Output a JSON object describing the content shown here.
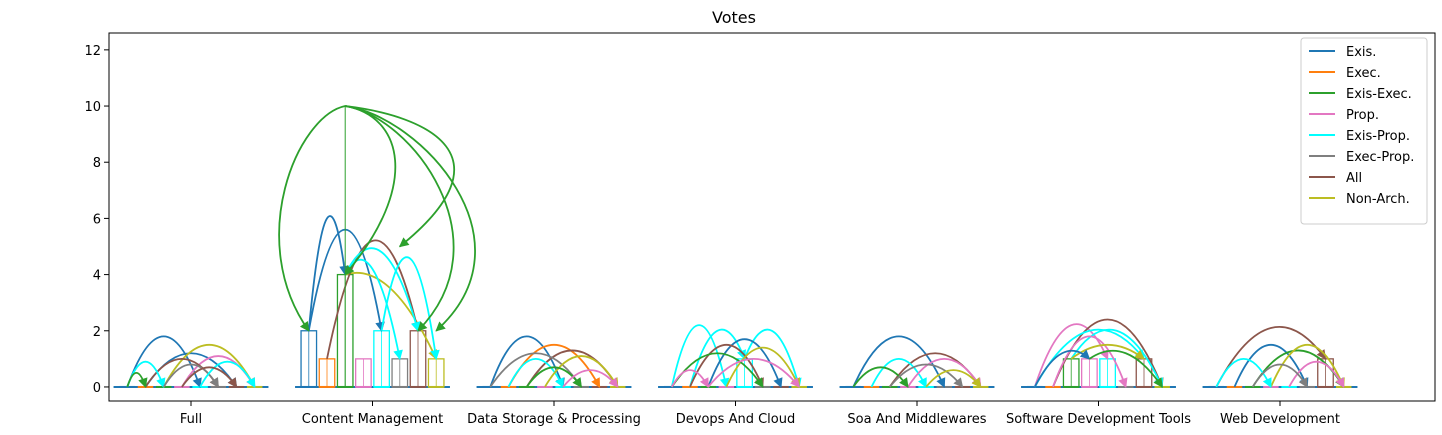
{
  "chart_data": {
    "type": "bar",
    "title": "Votes",
    "xlabel": "",
    "ylabel": "",
    "ylim": [
      -0.5,
      12.6
    ],
    "yticks": [
      0,
      2,
      4,
      6,
      8,
      10,
      12
    ],
    "grid": false,
    "legend_position": "top-right",
    "categories": [
      "Full",
      "Content Management",
      "Data Storage & Processing",
      "Devops And Cloud",
      "Soa And Middlewares",
      "Software Development Tools",
      "Web Development"
    ],
    "series": [
      {
        "name": "Exis.",
        "color": "#1f77b4",
        "values": [
          0,
          2,
          0,
          0,
          0,
          0,
          0
        ]
      },
      {
        "name": "Exec.",
        "color": "#ff7f0e",
        "values": [
          0,
          1,
          0,
          0,
          0,
          0,
          0
        ]
      },
      {
        "name": "Exis-Exec.",
        "color": "#2ca02c",
        "values": [
          0,
          4,
          0,
          0,
          0,
          1,
          0
        ]
      },
      {
        "name": "Prop.",
        "color": "#e377c2",
        "values": [
          0,
          1,
          0,
          0,
          0,
          1,
          0
        ]
      },
      {
        "name": "Exis-Prop.",
        "color": "#00ffff",
        "values": [
          0,
          2,
          0,
          1,
          0,
          1,
          0
        ]
      },
      {
        "name": "Exec-Prop.",
        "color": "#7f7f7f",
        "values": [
          0,
          1,
          0,
          0,
          0,
          0,
          0
        ]
      },
      {
        "name": "All",
        "color": "#8c564b",
        "values": [
          0,
          2,
          0,
          0,
          0,
          1,
          1
        ]
      },
      {
        "name": "Non-Arch.",
        "color": "#bcbd22",
        "values": [
          0,
          1,
          0,
          0,
          0,
          0,
          0
        ]
      }
    ],
    "arcs": [
      {
        "group": 0,
        "from": 0,
        "to": 4,
        "height": 1.8,
        "color": "#1f77b4"
      },
      {
        "group": 0,
        "from": 1,
        "to": 6,
        "height": 1.2,
        "color": "#1f77b4"
      },
      {
        "group": 0,
        "from": 2,
        "to": 7,
        "height": 1.5,
        "color": "#bcbd22"
      },
      {
        "group": 0,
        "from": 3,
        "to": 7,
        "height": 1.1,
        "color": "#e377c2"
      },
      {
        "group": 0,
        "from": 1,
        "to": 5,
        "height": 1.0,
        "color": "#8c564b"
      },
      {
        "group": 0,
        "from": 0,
        "to": 2,
        "height": 0.9,
        "color": "#00ffff"
      },
      {
        "group": 0,
        "from": 2,
        "to": 5,
        "height": 0.8,
        "color": "#7f7f7f"
      },
      {
        "group": 0,
        "from": 4,
        "to": 7,
        "height": 0.9,
        "color": "#00ffff"
      },
      {
        "group": 0,
        "from": 0,
        "to": 1,
        "height": 0.5,
        "color": "#2ca02c"
      },
      {
        "group": 0,
        "from": 3,
        "to": 6,
        "height": 0.7,
        "color": "#8c564b"
      },
      {
        "group": 1,
        "from": 0,
        "to": 2,
        "height": 6.0,
        "color": "#1f77b4"
      },
      {
        "group": 1,
        "from": 0,
        "to": 4,
        "height": 5.6,
        "color": "#1f77b4"
      },
      {
        "group": 1,
        "from": 2,
        "to": 7,
        "height": 3.5,
        "color": "#bcbd22"
      },
      {
        "group": 1,
        "from": 1,
        "to": 6,
        "height": 5.2,
        "color": "#8c564b"
      },
      {
        "group": 1,
        "from": 2,
        "to": 6,
        "height": 4.8,
        "color": "#00ffff"
      },
      {
        "group": 1,
        "from": 4,
        "to": 7,
        "height": 4.6,
        "color": "#00ffff"
      },
      {
        "group": 1,
        "from": 2,
        "to": 5,
        "height": 4.2,
        "color": "#00ffff"
      },
      {
        "group": 2,
        "from": 0,
        "to": 4,
        "height": 1.8,
        "color": "#1f77b4"
      },
      {
        "group": 2,
        "from": 1,
        "to": 6,
        "height": 1.5,
        "color": "#ff7f0e"
      },
      {
        "group": 2,
        "from": 2,
        "to": 7,
        "height": 1.3,
        "color": "#8c564b"
      },
      {
        "group": 2,
        "from": 0,
        "to": 5,
        "height": 1.2,
        "color": "#7f7f7f"
      },
      {
        "group": 2,
        "from": 1,
        "to": 4,
        "height": 1.0,
        "color": "#00ffff"
      },
      {
        "group": 2,
        "from": 3,
        "to": 7,
        "height": 1.1,
        "color": "#bcbd22"
      },
      {
        "group": 2,
        "from": 2,
        "to": 5,
        "height": 0.7,
        "color": "#2ca02c"
      },
      {
        "group": 2,
        "from": 4,
        "to": 7,
        "height": 0.6,
        "color": "#e377c2"
      },
      {
        "group": 3,
        "from": 0,
        "to": 3,
        "height": 2.2,
        "color": "#00ffff"
      },
      {
        "group": 3,
        "from": 1,
        "to": 4,
        "height": 2.0,
        "color": "#00ffff"
      },
      {
        "group": 3,
        "from": 4,
        "to": 7,
        "height": 2.0,
        "color": "#00ffff"
      },
      {
        "group": 3,
        "from": 2,
        "to": 6,
        "height": 1.7,
        "color": "#1f77b4"
      },
      {
        "group": 3,
        "from": 1,
        "to": 5,
        "height": 1.5,
        "color": "#8c564b"
      },
      {
        "group": 3,
        "from": 3,
        "to": 7,
        "height": 1.4,
        "color": "#bcbd22"
      },
      {
        "group": 3,
        "from": 0,
        "to": 5,
        "height": 1.2,
        "color": "#2ca02c"
      },
      {
        "group": 3,
        "from": 2,
        "to": 7,
        "height": 1.0,
        "color": "#e377c2"
      },
      {
        "group": 3,
        "from": 0,
        "to": 2,
        "height": 0.6,
        "color": "#e377c2"
      },
      {
        "group": 4,
        "from": 0,
        "to": 5,
        "height": 1.8,
        "color": "#1f77b4"
      },
      {
        "group": 4,
        "from": 2,
        "to": 7,
        "height": 1.2,
        "color": "#8c564b"
      },
      {
        "group": 4,
        "from": 1,
        "to": 4,
        "height": 1.0,
        "color": "#00ffff"
      },
      {
        "group": 4,
        "from": 3,
        "to": 7,
        "height": 1.0,
        "color": "#e377c2"
      },
      {
        "group": 4,
        "from": 0,
        "to": 3,
        "height": 0.7,
        "color": "#2ca02c"
      },
      {
        "group": 4,
        "from": 2,
        "to": 6,
        "height": 0.8,
        "color": "#7f7f7f"
      },
      {
        "group": 4,
        "from": 4,
        "to": 7,
        "height": 0.6,
        "color": "#bcbd22"
      },
      {
        "group": 5,
        "from": 0,
        "to": 4,
        "height": 2.2,
        "color": "#e377c2"
      },
      {
        "group": 5,
        "from": 1,
        "to": 7,
        "height": 2.4,
        "color": "#8c564b"
      },
      {
        "group": 5,
        "from": 0,
        "to": 6,
        "height": 2.0,
        "color": "#00ffff"
      },
      {
        "group": 5,
        "from": 2,
        "to": 7,
        "height": 2.0,
        "color": "#00ffff"
      },
      {
        "group": 5,
        "from": 1,
        "to": 5,
        "height": 1.8,
        "color": "#e377c2"
      },
      {
        "group": 5,
        "from": 2,
        "to": 6,
        "height": 1.5,
        "color": "#bcbd22"
      },
      {
        "group": 5,
        "from": 0,
        "to": 3,
        "height": 1.2,
        "color": "#1f77b4"
      },
      {
        "group": 5,
        "from": 3,
        "to": 7,
        "height": 1.2,
        "color": "#2ca02c"
      },
      {
        "group": 6,
        "from": 0,
        "to": 6,
        "height": 2.1,
        "color": "#8c564b"
      },
      {
        "group": 6,
        "from": 1,
        "to": 5,
        "height": 1.5,
        "color": "#1f77b4"
      },
      {
        "group": 6,
        "from": 2,
        "to": 7,
        "height": 1.3,
        "color": "#2ca02c"
      },
      {
        "group": 6,
        "from": 3,
        "to": 7,
        "height": 1.5,
        "color": "#bcbd22"
      },
      {
        "group": 6,
        "from": 0,
        "to": 3,
        "height": 1.0,
        "color": "#00ffff"
      },
      {
        "group": 6,
        "from": 4,
        "to": 7,
        "height": 0.9,
        "color": "#e377c2"
      },
      {
        "group": 6,
        "from": 2,
        "to": 5,
        "height": 0.8,
        "color": "#7f7f7f"
      }
    ],
    "annotations": [
      {
        "group": 1,
        "from_series": 2,
        "from_y": 10,
        "to": 0,
        "to_y": 2,
        "color": "#2ca02c"
      },
      {
        "group": 1,
        "from_series": 2,
        "from_y": 10,
        "to": 2,
        "to_y": 4,
        "color": "#2ca02c"
      },
      {
        "group": 1,
        "from_series": 2,
        "from_y": 10,
        "to": 6,
        "to_y": 2,
        "color": "#2ca02c"
      },
      {
        "group": 1,
        "from_series": 2,
        "from_y": 10,
        "to": 7,
        "to_y": 2,
        "color": "#2ca02c"
      },
      {
        "group": 1,
        "from_series": 2,
        "from_y": 10,
        "to": 5,
        "to_y": 5,
        "color": "#2ca02c"
      }
    ]
  }
}
